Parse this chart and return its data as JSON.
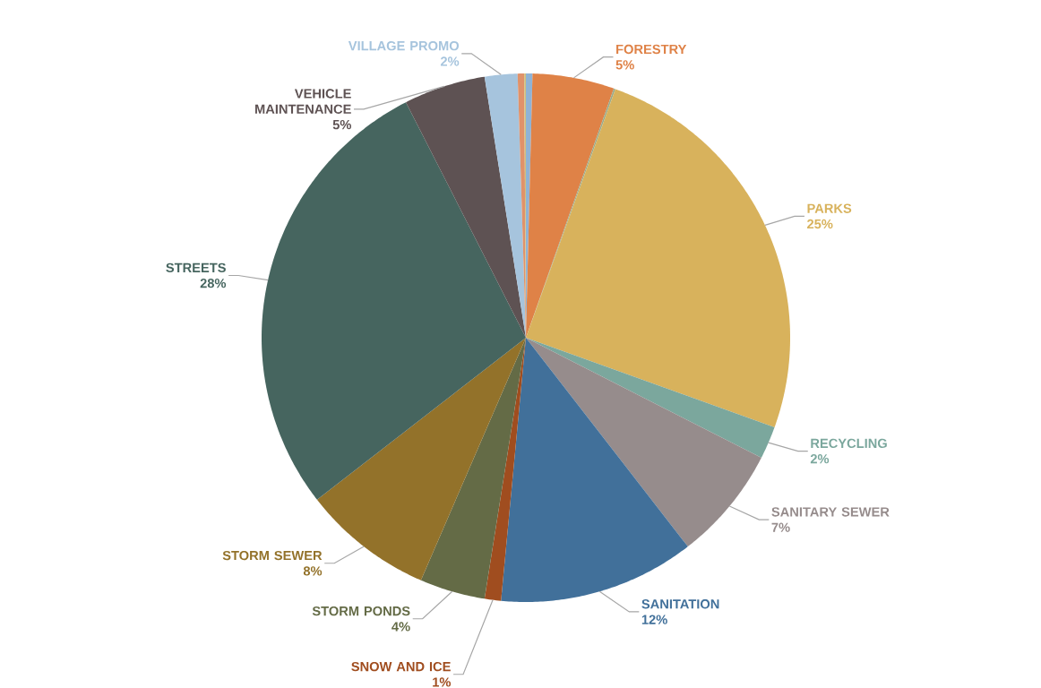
{
  "chart_data": {
    "type": "pie",
    "categories": [
      null,
      "FORESTRY",
      null,
      "PARKS",
      "RECYCLING",
      "SANITARY SEWER",
      "SANITATION",
      "SNOW AND ICE",
      "STORM PONDS",
      "STORM SEWER",
      "STREETS",
      "VEHICLE MAINTENANCE",
      "VILLAGE PROMO",
      null,
      null
    ],
    "values": [
      0.4,
      5,
      0.1,
      25,
      2,
      7,
      12,
      1,
      4,
      8,
      28,
      5,
      2,
      0.4,
      0.1
    ],
    "colors": [
      "#8fb3d6",
      "#df8247",
      "#9aab8a",
      "#d8b25c",
      "#7ba79d",
      "#968c8c",
      "#41709a",
      "#a04d1f",
      "#646b46",
      "#93722a",
      "#46655f",
      "#5e5253",
      "#a6c4dd",
      "#e0926a",
      "#d1c07d"
    ],
    "value_labels": [
      null,
      "5%",
      null,
      "25%",
      "2%",
      "7%",
      "12%",
      "1%",
      "4%",
      "8%",
      "28%",
      "5%",
      "2%",
      null,
      null
    ]
  }
}
